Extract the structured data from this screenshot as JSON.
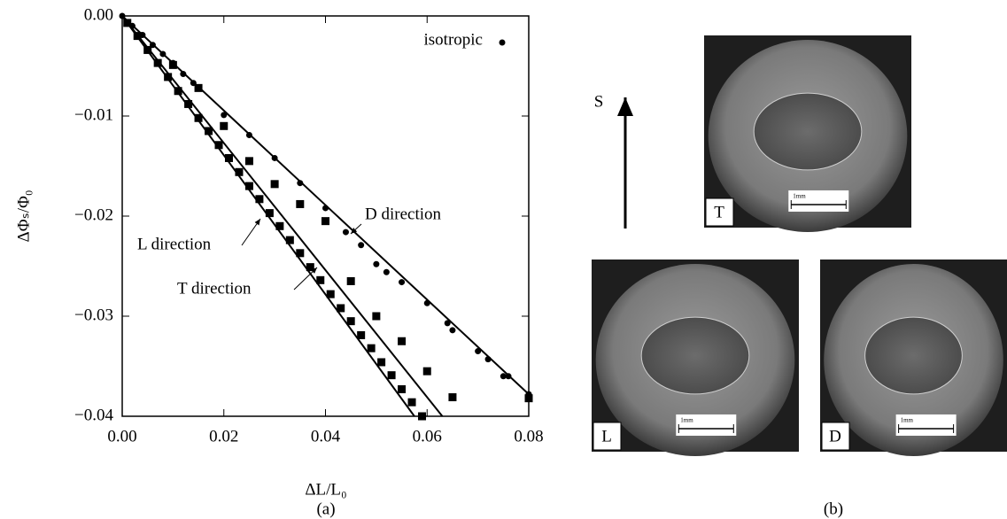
{
  "chart_data": {
    "type": "scatter",
    "x_label": "ΔL/L₀",
    "y_label": "ΔΦₛ/Φ₀",
    "caption": "(a)",
    "xlim": [
      0,
      0.08
    ],
    "ylim": [
      -0.04,
      0
    ],
    "xticks": [
      {
        "value": 0,
        "label": "0.00"
      },
      {
        "value": 0.02,
        "label": "0.02"
      },
      {
        "value": 0.04,
        "label": "0.04"
      },
      {
        "value": 0.06,
        "label": "0.06"
      },
      {
        "value": 0.08,
        "label": "0.08"
      }
    ],
    "yticks": [
      {
        "value": 0,
        "label": "0.00"
      },
      {
        "value": -0.01,
        "label": "−0.01"
      },
      {
        "value": -0.02,
        "label": "−0.02"
      },
      {
        "value": -0.03,
        "label": "−0.03"
      },
      {
        "value": -0.04,
        "label": "−0.04"
      }
    ],
    "grid": false,
    "series": [
      {
        "name": "isotropic",
        "marker": "circle",
        "color": "#000000",
        "x": [
          0,
          0.002,
          0.004,
          0.006,
          0.008,
          0.01,
          0.012,
          0.014,
          0.02,
          0.025,
          0.03,
          0.035,
          0.04,
          0.044,
          0.047,
          0.05,
          0.052,
          0.055,
          0.06,
          0.064,
          0.065,
          0.07,
          0.072,
          0.075,
          0.076,
          0.08
        ],
        "values": [
          0,
          -0.001,
          -0.0019,
          -0.0029,
          -0.0038,
          -0.0047,
          -0.0058,
          -0.0067,
          -0.0099,
          -0.0119,
          -0.0142,
          -0.0167,
          -0.0192,
          -0.0216,
          -0.0229,
          -0.0248,
          -0.0256,
          -0.0266,
          -0.0287,
          -0.0307,
          -0.0314,
          -0.0335,
          -0.0343,
          -0.036,
          -0.036,
          -0.0378
        ]
      },
      {
        "marker": "square",
        "color": "#000000",
        "x": [
          0.001,
          0.003,
          0.005,
          0.007,
          0.009,
          0.011,
          0.013,
          0.015,
          0.017,
          0.019,
          0.021,
          0.023,
          0.025,
          0.027,
          0.029,
          0.031,
          0.033,
          0.035,
          0.037,
          0.039,
          0.041,
          0.043,
          0.045,
          0.047,
          0.049,
          0.051,
          0.053,
          0.055,
          0.057,
          0.059,
          0.01,
          0.015,
          0.02,
          0.025,
          0.03,
          0.035,
          0.04,
          0.045,
          0.05,
          0.055,
          0.06,
          0.065,
          0.08
        ],
        "values": [
          -0.0007,
          -0.002,
          -0.0034,
          -0.0047,
          -0.0061,
          -0.0075,
          -0.0088,
          -0.0102,
          -0.0115,
          -0.0129,
          -0.0142,
          -0.0156,
          -0.017,
          -0.0183,
          -0.0197,
          -0.021,
          -0.0224,
          -0.0237,
          -0.0251,
          -0.0264,
          -0.0278,
          -0.0292,
          -0.0305,
          -0.0319,
          -0.0332,
          -0.0346,
          -0.0359,
          -0.0373,
          -0.0386,
          -0.04,
          -0.0049,
          -0.0072,
          -0.011,
          -0.0145,
          -0.0168,
          -0.0188,
          -0.0205,
          -0.0265,
          -0.03,
          -0.0325,
          -0.0355,
          -0.0381,
          -0.0382
        ]
      }
    ],
    "lines": [
      {
        "label": "D direction",
        "x": [
          0,
          0.08
        ],
        "values": [
          0,
          -0.0378
        ]
      },
      {
        "label": "T direction",
        "x": [
          0,
          0.063
        ],
        "values": [
          0,
          -0.04
        ]
      },
      {
        "label": "L direction",
        "x": [
          0,
          0.0575
        ],
        "values": [
          0,
          -0.04
        ]
      }
    ],
    "legend": "upper right"
  },
  "panel_b": {
    "caption": "(b)",
    "arrow_label": "S",
    "photos": [
      {
        "label": "T",
        "scale": "1mm"
      },
      {
        "label": "L",
        "scale": "1mm"
      },
      {
        "label": "D",
        "scale": "1mm"
      }
    ]
  }
}
